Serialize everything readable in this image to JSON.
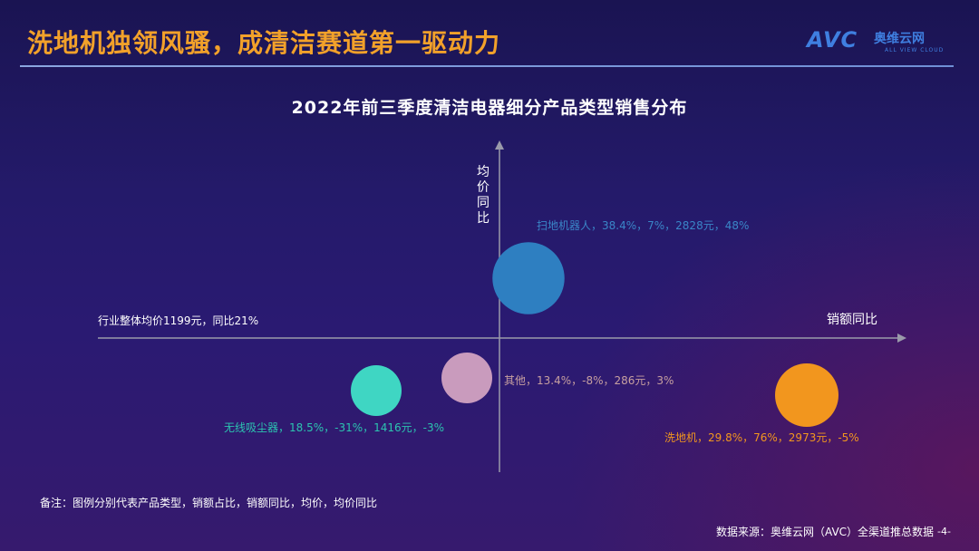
{
  "header": {
    "title": "洗地机独领风骚，成清洁赛道第一驱动力",
    "logo": {
      "mark": "AVC",
      "name_cn": "奥维云网",
      "name_en": "ALL VIEW CLOUD"
    }
  },
  "chart_data": {
    "type": "scatter",
    "title": "2022年前三季度清洁电器细分产品类型销售分布",
    "xlabel": "销额同比",
    "ylabel": "均价同比",
    "baseline_label": "行业整体均价1199元，同比21%",
    "points": [
      {
        "label": "扫地机器人，38.4%，7%，2828元，48%",
        "category": "扫地机器人",
        "share": 38.4,
        "x": 7,
        "price": 2828,
        "y": 48,
        "color": "#2e7fc1"
      },
      {
        "label": "其他，13.4%，-8%，286元，3%",
        "category": "其他",
        "share": 13.4,
        "x": -8,
        "price": 286,
        "y": 3,
        "color": "#c99bbd"
      },
      {
        "label": "无线吸尘器，18.5%，-31%，1416元，-3%",
        "category": "无线吸尘器",
        "share": 18.5,
        "x": -31,
        "price": 1416,
        "y": -3,
        "color": "#3fd6c3"
      },
      {
        "label": "洗地机，29.8%，76%，2973元，-5%",
        "category": "洗地机",
        "share": 29.8,
        "x": 76,
        "price": 2973,
        "y": -5,
        "color": "#f2961e"
      }
    ],
    "label_colors": [
      "#3a86c8",
      "#c7a0a0",
      "#2cc4b0",
      "#f2961e"
    ]
  },
  "footer": {
    "note": "备注：图例分别代表产品类型，销额占比，销额同比，均价，均价同比",
    "source": "数据来源：奥维云网（AVC）全渠道推总数据",
    "page": "-4-"
  }
}
